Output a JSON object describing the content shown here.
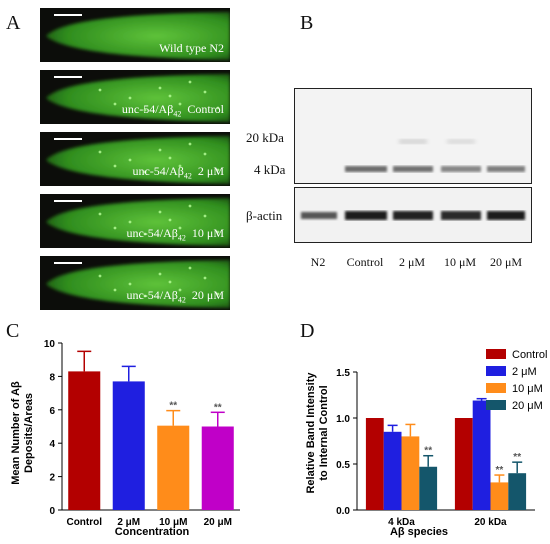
{
  "panels": {
    "a": "A",
    "b": "B",
    "c": "C",
    "d": "D"
  },
  "worm_images": [
    {
      "label": "Wild type N2",
      "base": "",
      "sub": "",
      "suffix": ""
    },
    {
      "label": "",
      "base": "unc-54/Aβ",
      "sub": "42",
      "suffix": "Control"
    },
    {
      "label": "",
      "base": "unc-54/Aβ",
      "sub": "42",
      "suffix": "2 μM"
    },
    {
      "label": "",
      "base": "unc-54/Aβ",
      "sub": "42",
      "suffix": "10 μM"
    },
    {
      "label": "",
      "base": "unc-54/Aβ",
      "sub": "42",
      "suffix": "20 μM"
    }
  ],
  "western_blot": {
    "band_labels": {
      "kda20": "20 kDa",
      "kda4": "4 kDa",
      "actin": "β-actin"
    },
    "lanes": [
      "N2",
      "Control",
      "2 μM",
      "10 μM",
      "20 μM"
    ]
  },
  "chart_data": [
    {
      "type": "bar",
      "title": "",
      "categories": [
        "Control",
        "2 μM",
        "10 μM",
        "20 μM"
      ],
      "values": [
        8.3,
        7.7,
        5.05,
        5.0
      ],
      "errors": [
        1.2,
        0.9,
        0.9,
        0.85
      ],
      "significance": [
        "",
        "",
        "**",
        "**"
      ],
      "colors": [
        "#b30000",
        "#1f1fe0",
        "#ff8c1a",
        "#c000c8"
      ],
      "xlabel": "Concentration",
      "ylabel_line1": "Mean Number of Aβ",
      "ylabel_line2": "Deposits/Areas",
      "ylim": [
        0,
        10
      ],
      "yticks": [
        "0",
        "2",
        "4",
        "6",
        "8",
        "10"
      ]
    },
    {
      "type": "bar",
      "title": "",
      "categories": [
        "4 kDa",
        "20 kDa"
      ],
      "series": [
        {
          "name": "Control",
          "color": "#b30000",
          "values": [
            1.0,
            1.0
          ],
          "errors": [
            0,
            0
          ],
          "significance": [
            "",
            ""
          ]
        },
        {
          "name": "2 μM",
          "color": "#1f1fe0",
          "values": [
            0.85,
            1.19
          ],
          "errors": [
            0.07,
            0.02
          ],
          "significance": [
            "",
            ""
          ]
        },
        {
          "name": "10 μM",
          "color": "#ff8c1a",
          "values": [
            0.8,
            0.3
          ],
          "errors": [
            0.13,
            0.08
          ],
          "significance": [
            "",
            "**"
          ]
        },
        {
          "name": "20 μM",
          "color": "#14566b",
          "values": [
            0.47,
            0.4
          ],
          "errors": [
            0.12,
            0.12
          ],
          "significance": [
            "**",
            "**"
          ]
        }
      ],
      "xlabel": "Aβ species",
      "ylabel_line1": "Relative Band Intensity",
      "ylabel_line2": "to Internal Control",
      "ylim": [
        0,
        1.5
      ],
      "yticks": [
        "0.0",
        "0.5",
        "1.0",
        "1.5"
      ],
      "legend_position": "top-right"
    }
  ]
}
